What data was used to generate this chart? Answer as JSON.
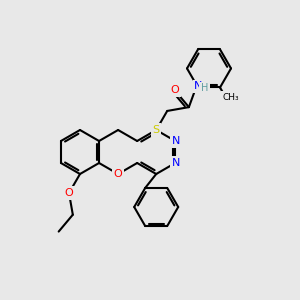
{
  "bg_color": "#e8e8e8",
  "bond_color": "#000000",
  "colors": {
    "O": "#ff0000",
    "N": "#0000ff",
    "S": "#cccc00",
    "H": "#5f9ea0",
    "C": "#000000",
    "methyl": "#000000"
  },
  "figsize": [
    3.0,
    3.0
  ],
  "dpi": 100
}
